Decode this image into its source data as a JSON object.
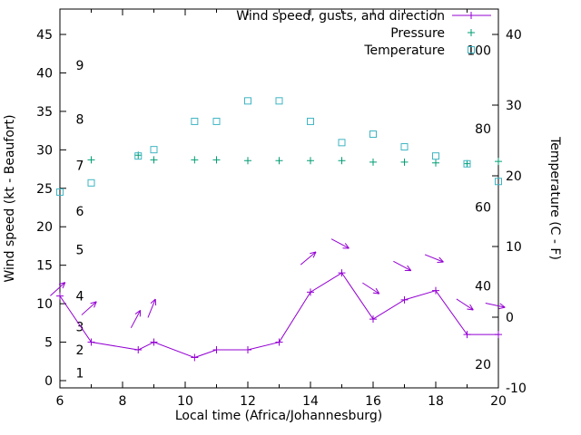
{
  "chart_data": {
    "type": "line",
    "xlabel": "Local time (Africa/Johannesburg)",
    "ylabel_left": "Wind speed (kt - Beaufort)",
    "ylabel_right": "Temperature (C - F)",
    "x_range": [
      6,
      20
    ],
    "x_ticks": [
      6,
      8,
      10,
      12,
      14,
      16,
      18,
      20
    ],
    "x_minor_ticks": [
      7,
      9,
      11,
      13,
      15,
      17,
      19
    ],
    "left_axis": {
      "ticks_kt": [
        0,
        5,
        10,
        15,
        20,
        25,
        30,
        35,
        40,
        45
      ],
      "range": [
        0,
        48
      ]
    },
    "right_axis": {
      "ticks_c": [
        -10,
        0,
        10,
        20,
        30,
        40
      ],
      "range": [
        -10,
        44
      ]
    },
    "beaufort_labels": [
      {
        "label": "1",
        "kt": 1
      },
      {
        "label": "2",
        "kt": 4
      },
      {
        "label": "3",
        "kt": 7
      },
      {
        "label": "4",
        "kt": 11
      },
      {
        "label": "5",
        "kt": 17
      },
      {
        "label": "6",
        "kt": 22
      },
      {
        "label": "7",
        "kt": 28
      },
      {
        "label": "8",
        "kt": 34
      },
      {
        "label": "9",
        "kt": 41
      }
    ],
    "fahrenheit_labels": [
      20,
      40,
      60,
      80,
      100
    ],
    "colors": {
      "wind": "#9400d3",
      "pressure": "#009e73",
      "temperature": "#3fb5c2",
      "axis": "#000000"
    },
    "legend": [
      {
        "label": "Wind speed, gusts, and direction",
        "series": "wind",
        "marker": "line-plus"
      },
      {
        "label": "Pressure",
        "series": "pressure",
        "marker": "plus"
      },
      {
        "label": "Temperature",
        "series": "temperature",
        "marker": "square"
      }
    ],
    "series": {
      "wind_speed_kt": {
        "x": [
          6,
          7,
          8.5,
          9,
          10.3,
          11,
          12,
          13,
          14,
          15,
          16,
          17,
          18,
          19,
          20
        ],
        "y": [
          11,
          5,
          4,
          5,
          3,
          4,
          4,
          5,
          11.5,
          14,
          8,
          10.5,
          11.7,
          6,
          6
        ]
      },
      "gust_arrows": [
        {
          "x": 5.93,
          "kt": 11.9,
          "angle_deg": 42
        },
        {
          "x": 6.93,
          "kt": 9.4,
          "angle_deg": 42
        },
        {
          "x": 8.42,
          "kt": 8.0,
          "angle_deg": 62
        },
        {
          "x": 8.93,
          "kt": 9.4,
          "angle_deg": 68
        },
        {
          "x": 13.93,
          "kt": 15.9,
          "angle_deg": 40
        },
        {
          "x": 14.95,
          "kt": 17.8,
          "angle_deg": -28
        },
        {
          "x": 15.93,
          "kt": 12.0,
          "angle_deg": -33
        },
        {
          "x": 16.93,
          "kt": 14.9,
          "angle_deg": -28
        },
        {
          "x": 17.95,
          "kt": 15.9,
          "angle_deg": -22
        },
        {
          "x": 18.93,
          "kt": 9.9,
          "angle_deg": -33
        },
        {
          "x": 19.9,
          "kt": 9.8,
          "angle_deg": -12
        }
      ],
      "pressure_left_axis_units": {
        "x": [
          7,
          8.5,
          9,
          10.3,
          11,
          12,
          13,
          14,
          15,
          16,
          17,
          18,
          19,
          20
        ],
        "y": [
          28.7,
          29.3,
          28.7,
          28.7,
          28.7,
          28.6,
          28.6,
          28.6,
          28.6,
          28.4,
          28.4,
          28.3,
          28.2,
          28.5
        ]
      },
      "temperature_c": {
        "x": [
          6,
          7,
          8.5,
          9,
          10.3,
          11,
          12,
          13,
          14,
          15,
          16,
          17,
          18,
          19,
          20
        ],
        "y": [
          17.7,
          19.0,
          22.8,
          23.7,
          27.7,
          27.7,
          30.6,
          30.6,
          27.7,
          24.7,
          25.9,
          24.1,
          22.8,
          21.7,
          19.2
        ]
      }
    }
  }
}
